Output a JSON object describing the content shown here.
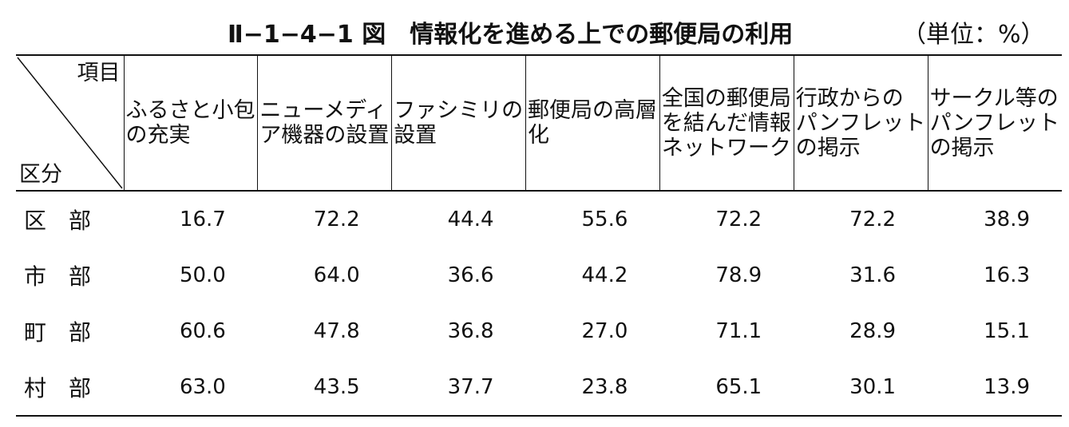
{
  "header": {
    "title": "Ⅱ−1−4−1 図　情報化を進める上での郵便局の利用",
    "unit": "（単位：%）"
  },
  "table": {
    "corner_top": "項目",
    "corner_bottom": "区分",
    "columns": [
      "ふるさと小包の充実",
      "ニューメディア機器の設置",
      "ファシミリの設置",
      "郵便局の高層化",
      "全国の郵便局を結んだ情報ネットワーク",
      "行政からのパンフレットの掲示",
      "サークル等のパンフレットの掲示"
    ],
    "rows": [
      {
        "label": "区　部",
        "values": [
          "16.7",
          "72.2",
          "44.4",
          "55.6",
          "72.2",
          "72.2",
          "38.9"
        ]
      },
      {
        "label": "市　部",
        "values": [
          "50.0",
          "64.0",
          "36.6",
          "44.2",
          "78.9",
          "31.6",
          "16.3"
        ]
      },
      {
        "label": "町　部",
        "values": [
          "60.6",
          "47.8",
          "36.8",
          "27.0",
          "71.1",
          "28.9",
          "15.1"
        ]
      },
      {
        "label": "村　部",
        "values": [
          "63.0",
          "43.5",
          "37.7",
          "23.8",
          "65.1",
          "30.1",
          "13.9"
        ]
      }
    ]
  }
}
